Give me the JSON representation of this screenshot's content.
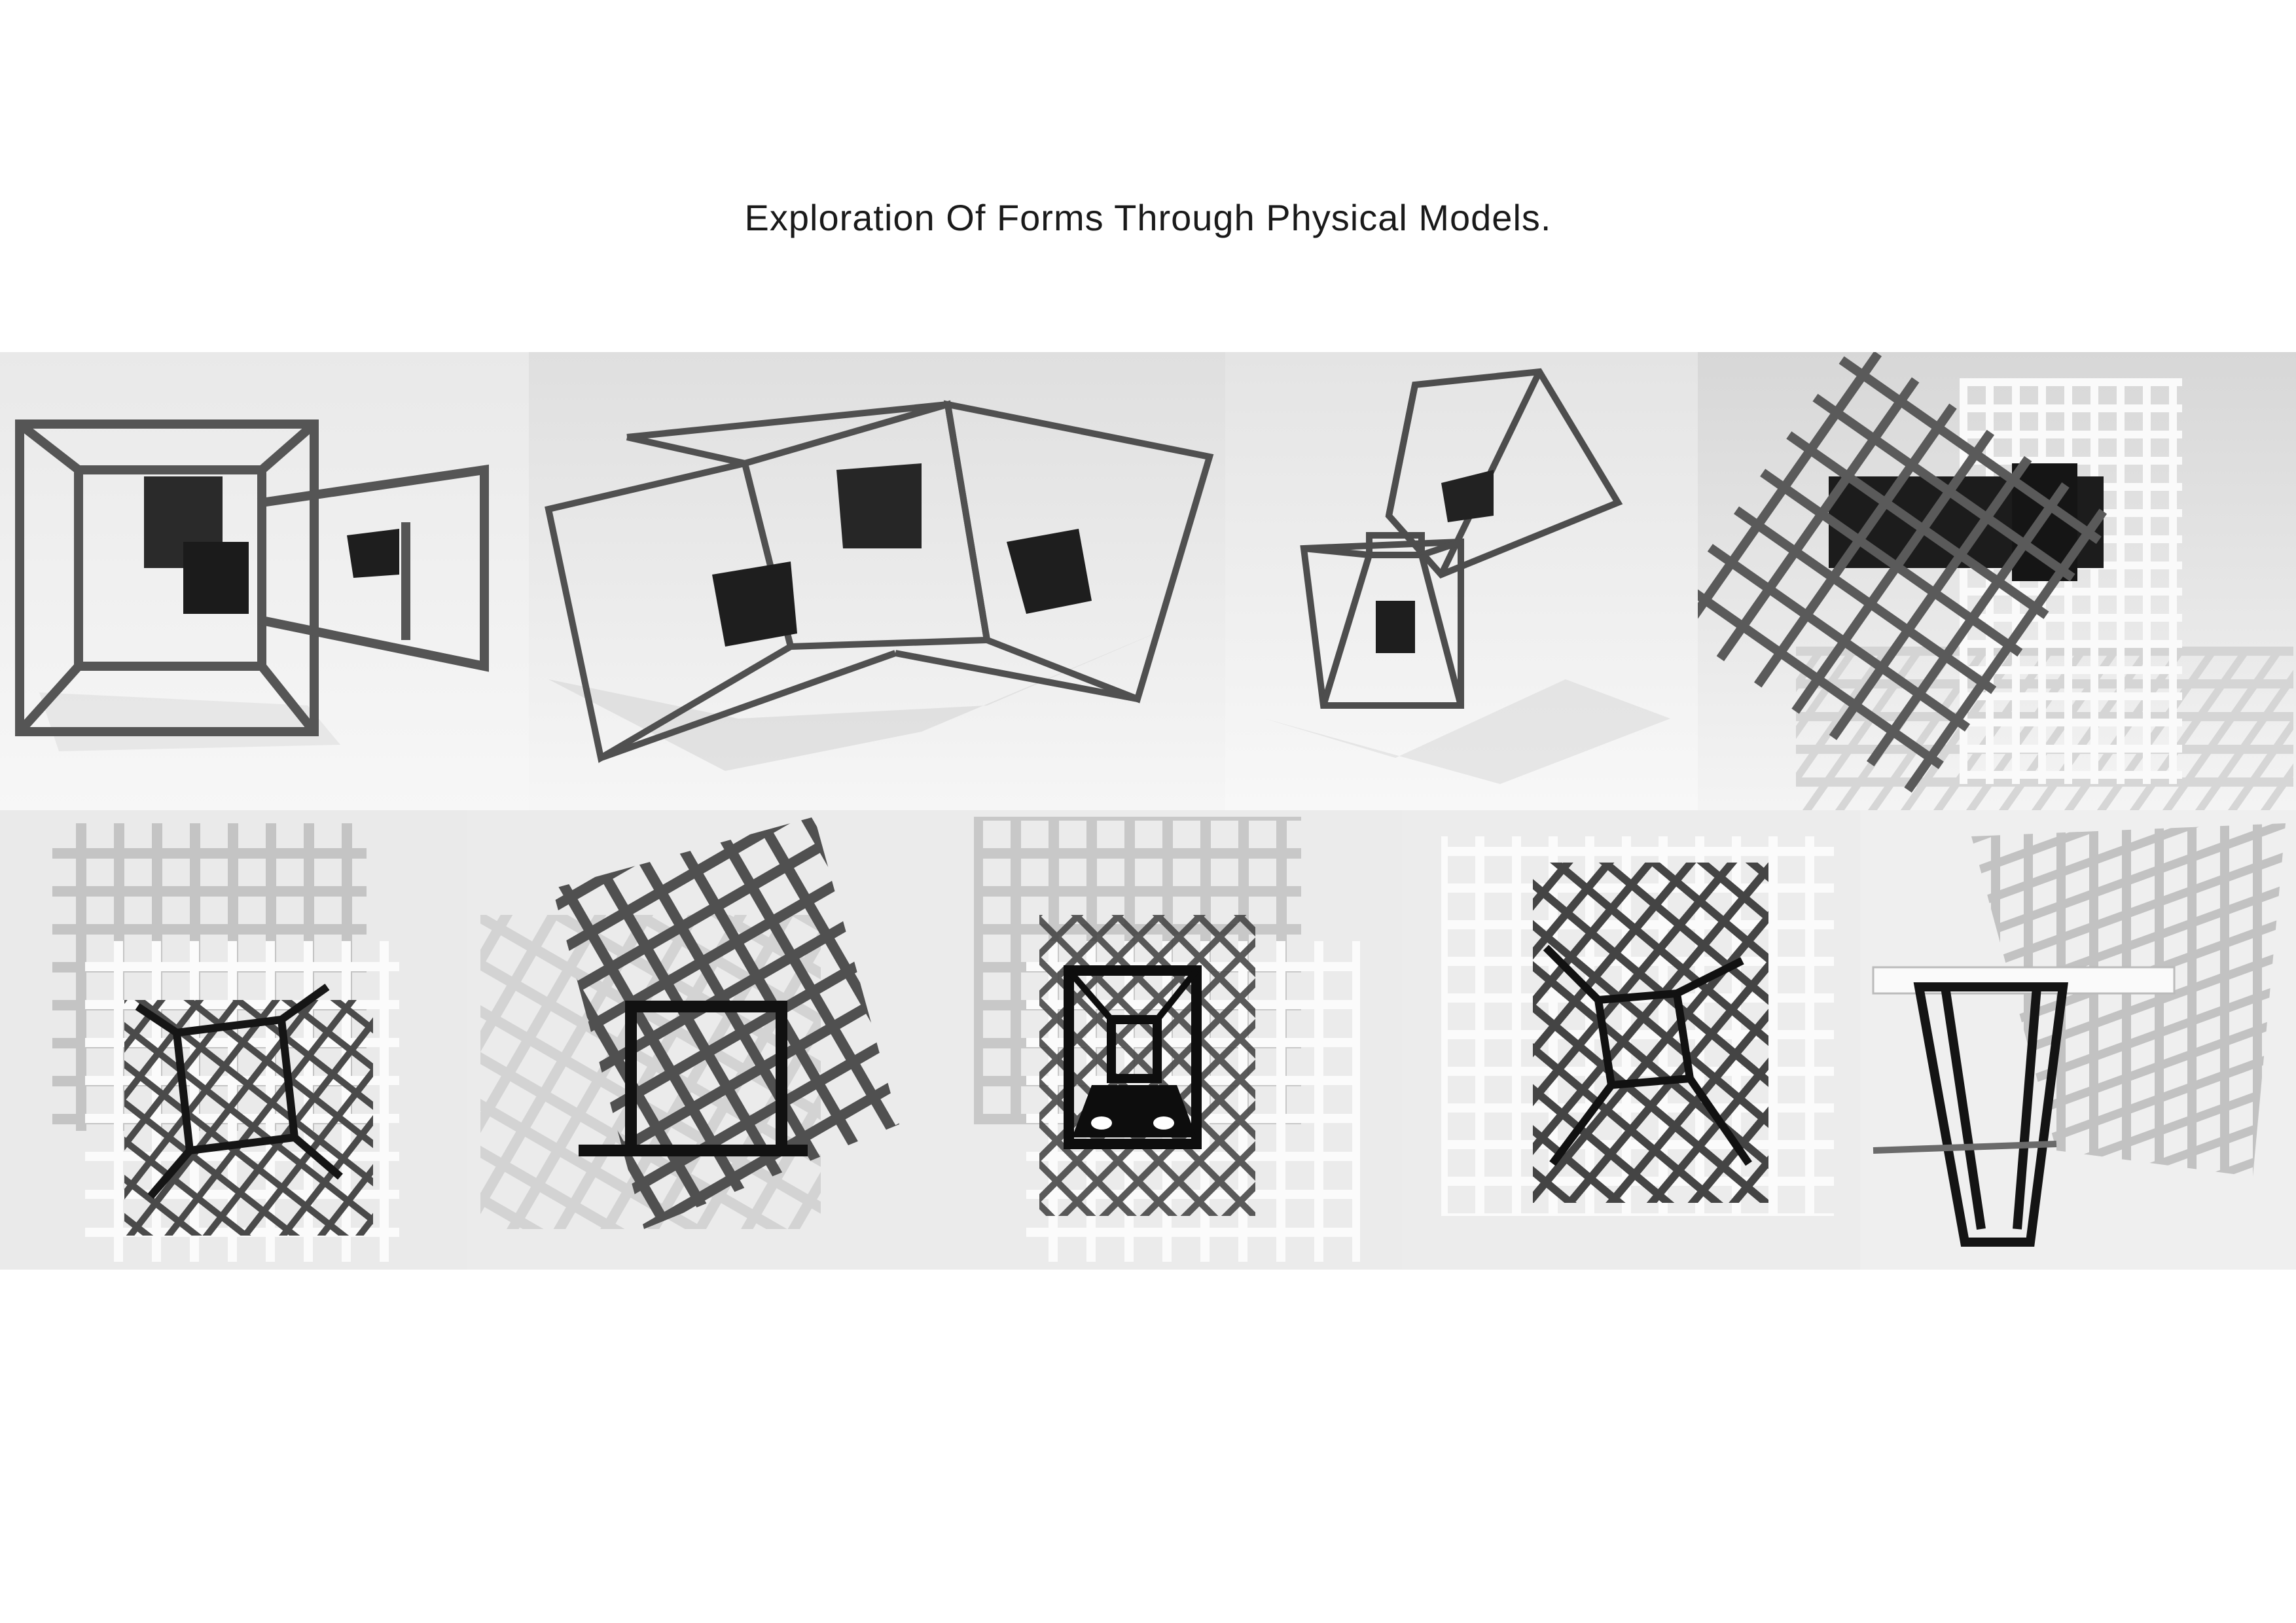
{
  "page": {
    "title": "Exploration Of Forms Through Physical Models."
  },
  "palette": {
    "background": "#ffffff",
    "photo_bg": "#eeeeee",
    "frame_dark": "#555555",
    "block_black": "#1e1e1e",
    "grid_light": "#f6f6f6",
    "shadow": "#cccccc"
  },
  "photos": [
    {
      "name": "model-photo-cube-frame-1"
    },
    {
      "name": "model-photo-bowtie-frames"
    },
    {
      "name": "model-photo-two-frames"
    },
    {
      "name": "model-photo-grids-with-block"
    },
    {
      "name": "model-photo-grid-overlay-1"
    },
    {
      "name": "model-photo-grid-square-frame"
    },
    {
      "name": "model-photo-grid-overlay-black-frame"
    },
    {
      "name": "model-photo-grid-overlay-2"
    },
    {
      "name": "model-photo-grid-side-view"
    }
  ]
}
